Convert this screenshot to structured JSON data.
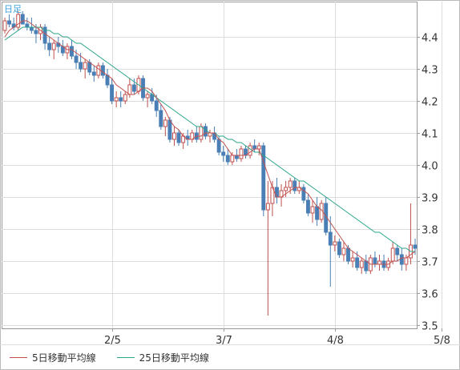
{
  "chart_data": {
    "type": "candlestick",
    "period_label": "日足",
    "x_tick_labels": [
      "2/5",
      "3/7",
      "4/8",
      "5/8"
    ],
    "y_tick_labels": [
      "3.5",
      "3.6",
      "3.7",
      "3.8",
      "3.9",
      "4.0",
      "4.1",
      "4.2",
      "4.3",
      "4.4"
    ],
    "ylim": [
      3.49,
      4.51
    ],
    "grid": true,
    "legend_position": "bottom",
    "series": [
      {
        "name": "5日移動平均線",
        "color": "#c0504d"
      },
      {
        "name": "25日移動平均線",
        "color": "#2aa58a"
      }
    ],
    "colors": {
      "up": "#c0504d",
      "down": "#4a7fb5",
      "ma5": "#c0504d",
      "ma25": "#2aa58a",
      "grid": "#dddddd"
    },
    "candles": [
      [
        4.42,
        4.46,
        4.41,
        4.45
      ],
      [
        4.45,
        4.47,
        4.43,
        4.44
      ],
      [
        4.44,
        4.46,
        4.42,
        4.43
      ],
      [
        4.43,
        4.48,
        4.42,
        4.47
      ],
      [
        4.47,
        4.48,
        4.44,
        4.44
      ],
      [
        4.44,
        4.46,
        4.42,
        4.43
      ],
      [
        4.43,
        4.46,
        4.41,
        4.42
      ],
      [
        4.42,
        4.44,
        4.38,
        4.41
      ],
      [
        4.41,
        4.44,
        4.39,
        4.43
      ],
      [
        4.43,
        4.44,
        4.36,
        4.38
      ],
      [
        4.38,
        4.4,
        4.34,
        4.36
      ],
      [
        4.36,
        4.39,
        4.33,
        4.38
      ],
      [
        4.38,
        4.4,
        4.35,
        4.37
      ],
      [
        4.37,
        4.39,
        4.34,
        4.35
      ],
      [
        4.35,
        4.38,
        4.33,
        4.37
      ],
      [
        4.37,
        4.39,
        4.33,
        4.34
      ],
      [
        4.34,
        4.36,
        4.3,
        4.32
      ],
      [
        4.32,
        4.35,
        4.29,
        4.3
      ],
      [
        4.3,
        4.33,
        4.27,
        4.32
      ],
      [
        4.32,
        4.33,
        4.28,
        4.29
      ],
      [
        4.29,
        4.31,
        4.26,
        4.28
      ],
      [
        4.28,
        4.32,
        4.27,
        4.31
      ],
      [
        4.31,
        4.32,
        4.27,
        4.28
      ],
      [
        4.28,
        4.3,
        4.24,
        4.25
      ],
      [
        4.25,
        4.27,
        4.19,
        4.2
      ],
      [
        4.2,
        4.23,
        4.18,
        4.21
      ],
      [
        4.21,
        4.23,
        4.18,
        4.2
      ],
      [
        4.2,
        4.23,
        4.19,
        4.22
      ],
      [
        4.22,
        4.27,
        4.21,
        4.25
      ],
      [
        4.25,
        4.27,
        4.22,
        4.23
      ],
      [
        4.23,
        4.28,
        4.22,
        4.27
      ],
      [
        4.27,
        4.28,
        4.2,
        4.21
      ],
      [
        4.21,
        4.23,
        4.18,
        4.22
      ],
      [
        4.22,
        4.24,
        4.19,
        4.2
      ],
      [
        4.2,
        4.22,
        4.15,
        4.17
      ],
      [
        4.17,
        4.19,
        4.11,
        4.12
      ],
      [
        4.12,
        4.15,
        4.09,
        4.14
      ],
      [
        4.14,
        4.15,
        4.07,
        4.08
      ],
      [
        4.08,
        4.12,
        4.06,
        4.1
      ],
      [
        4.1,
        4.11,
        4.06,
        4.07
      ],
      [
        4.07,
        4.1,
        4.05,
        4.09
      ],
      [
        4.09,
        4.11,
        4.06,
        4.08
      ],
      [
        4.08,
        4.11,
        4.07,
        4.1
      ],
      [
        4.1,
        4.12,
        4.07,
        4.08
      ],
      [
        4.08,
        4.13,
        4.07,
        4.12
      ],
      [
        4.12,
        4.13,
        4.08,
        4.09
      ],
      [
        4.09,
        4.11,
        4.07,
        4.1
      ],
      [
        4.1,
        4.12,
        4.07,
        4.08
      ],
      [
        4.08,
        4.09,
        4.03,
        4.04
      ],
      [
        4.04,
        4.06,
        4.01,
        4.03
      ],
      [
        4.03,
        4.05,
        4.0,
        4.01
      ],
      [
        4.01,
        4.04,
        4.0,
        4.03
      ],
      [
        4.03,
        4.05,
        4.01,
        4.02
      ],
      [
        4.02,
        4.06,
        4.01,
        4.05
      ],
      [
        4.05,
        4.06,
        4.02,
        4.03
      ],
      [
        4.03,
        4.07,
        4.02,
        4.06
      ],
      [
        4.06,
        4.08,
        4.04,
        4.05
      ],
      [
        4.05,
        4.07,
        4.03,
        4.06
      ],
      [
        4.06,
        4.07,
        3.84,
        3.86
      ],
      [
        3.86,
        3.95,
        3.53,
        3.88
      ],
      [
        3.88,
        3.95,
        3.84,
        3.93
      ],
      [
        3.93,
        3.96,
        3.88,
        3.9
      ],
      [
        3.9,
        3.94,
        3.87,
        3.92
      ],
      [
        3.92,
        3.95,
        3.9,
        3.93
      ],
      [
        3.93,
        3.96,
        3.91,
        3.95
      ],
      [
        3.95,
        3.96,
        3.91,
        3.92
      ],
      [
        3.92,
        3.95,
        3.91,
        3.93
      ],
      [
        3.93,
        3.94,
        3.88,
        3.89
      ],
      [
        3.89,
        3.91,
        3.84,
        3.85
      ],
      [
        3.85,
        3.89,
        3.82,
        3.87
      ],
      [
        3.87,
        3.9,
        3.81,
        3.83
      ],
      [
        3.83,
        3.89,
        3.82,
        3.88
      ],
      [
        3.88,
        3.9,
        3.78,
        3.79
      ],
      [
        3.79,
        3.84,
        3.62,
        3.75
      ],
      [
        3.75,
        3.78,
        3.73,
        3.76
      ],
      [
        3.76,
        3.77,
        3.71,
        3.72
      ],
      [
        3.72,
        3.76,
        3.7,
        3.74
      ],
      [
        3.74,
        3.75,
        3.69,
        3.7
      ],
      [
        3.7,
        3.73,
        3.68,
        3.71
      ],
      [
        3.71,
        3.73,
        3.67,
        3.68
      ],
      [
        3.68,
        3.71,
        3.66,
        3.7
      ],
      [
        3.7,
        3.72,
        3.66,
        3.67
      ],
      [
        3.67,
        3.72,
        3.66,
        3.71
      ],
      [
        3.71,
        3.73,
        3.68,
        3.69
      ],
      [
        3.69,
        3.72,
        3.67,
        3.7
      ],
      [
        3.7,
        3.72,
        3.67,
        3.68
      ],
      [
        3.68,
        3.71,
        3.67,
        3.7
      ],
      [
        3.7,
        3.76,
        3.69,
        3.74
      ],
      [
        3.74,
        3.75,
        3.7,
        3.72
      ],
      [
        3.72,
        3.74,
        3.67,
        3.69
      ],
      [
        3.69,
        3.72,
        3.67,
        3.71
      ],
      [
        3.71,
        3.88,
        3.69,
        3.75
      ],
      [
        3.75,
        3.77,
        3.72,
        3.74
      ]
    ],
    "ma5": [
      4.4,
      4.42,
      4.43,
      4.44,
      4.45,
      4.45,
      4.44,
      4.43,
      4.42,
      4.41,
      4.4,
      4.39,
      4.38,
      4.37,
      4.36,
      4.36,
      4.35,
      4.34,
      4.33,
      4.32,
      4.31,
      4.3,
      4.29,
      4.28,
      4.27,
      4.25,
      4.24,
      4.23,
      4.22,
      4.22,
      4.23,
      4.24,
      4.24,
      4.23,
      4.21,
      4.19,
      4.17,
      4.14,
      4.12,
      4.11,
      4.09,
      4.08,
      4.08,
      4.09,
      4.09,
      4.1,
      4.1,
      4.1,
      4.08,
      4.07,
      4.05,
      4.03,
      4.03,
      4.03,
      4.03,
      4.04,
      4.05,
      4.05,
      4.01,
      3.97,
      3.93,
      3.9,
      3.9,
      3.91,
      3.92,
      3.93,
      3.93,
      3.92,
      3.91,
      3.89,
      3.87,
      3.86,
      3.84,
      3.82,
      3.8,
      3.78,
      3.76,
      3.74,
      3.73,
      3.72,
      3.71,
      3.7,
      3.69,
      3.69,
      3.69,
      3.69,
      3.69,
      3.7,
      3.7,
      3.71,
      3.71,
      3.72,
      3.73
    ],
    "ma25": [
      4.39,
      4.4,
      4.41,
      4.42,
      4.43,
      4.43,
      4.43,
      4.43,
      4.43,
      4.42,
      4.42,
      4.41,
      4.41,
      4.4,
      4.4,
      4.39,
      4.38,
      4.38,
      4.37,
      4.36,
      4.35,
      4.34,
      4.33,
      4.32,
      4.31,
      4.3,
      4.29,
      4.28,
      4.27,
      4.26,
      4.25,
      4.24,
      4.23,
      4.22,
      4.21,
      4.2,
      4.19,
      4.18,
      4.17,
      4.16,
      4.15,
      4.14,
      4.13,
      4.12,
      4.12,
      4.11,
      4.1,
      4.1,
      4.09,
      4.09,
      4.08,
      4.08,
      4.07,
      4.07,
      4.06,
      4.05,
      4.04,
      4.04,
      4.03,
      4.02,
      4.01,
      4.0,
      3.99,
      3.98,
      3.97,
      3.96,
      3.95,
      3.95,
      3.94,
      3.93,
      3.92,
      3.91,
      3.9,
      3.89,
      3.88,
      3.87,
      3.86,
      3.85,
      3.84,
      3.83,
      3.82,
      3.81,
      3.8,
      3.79,
      3.79,
      3.78,
      3.77,
      3.76,
      3.75,
      3.74,
      3.74,
      3.73,
      3.73
    ],
    "x_tick_indices": [
      24,
      49,
      74,
      98
    ]
  }
}
